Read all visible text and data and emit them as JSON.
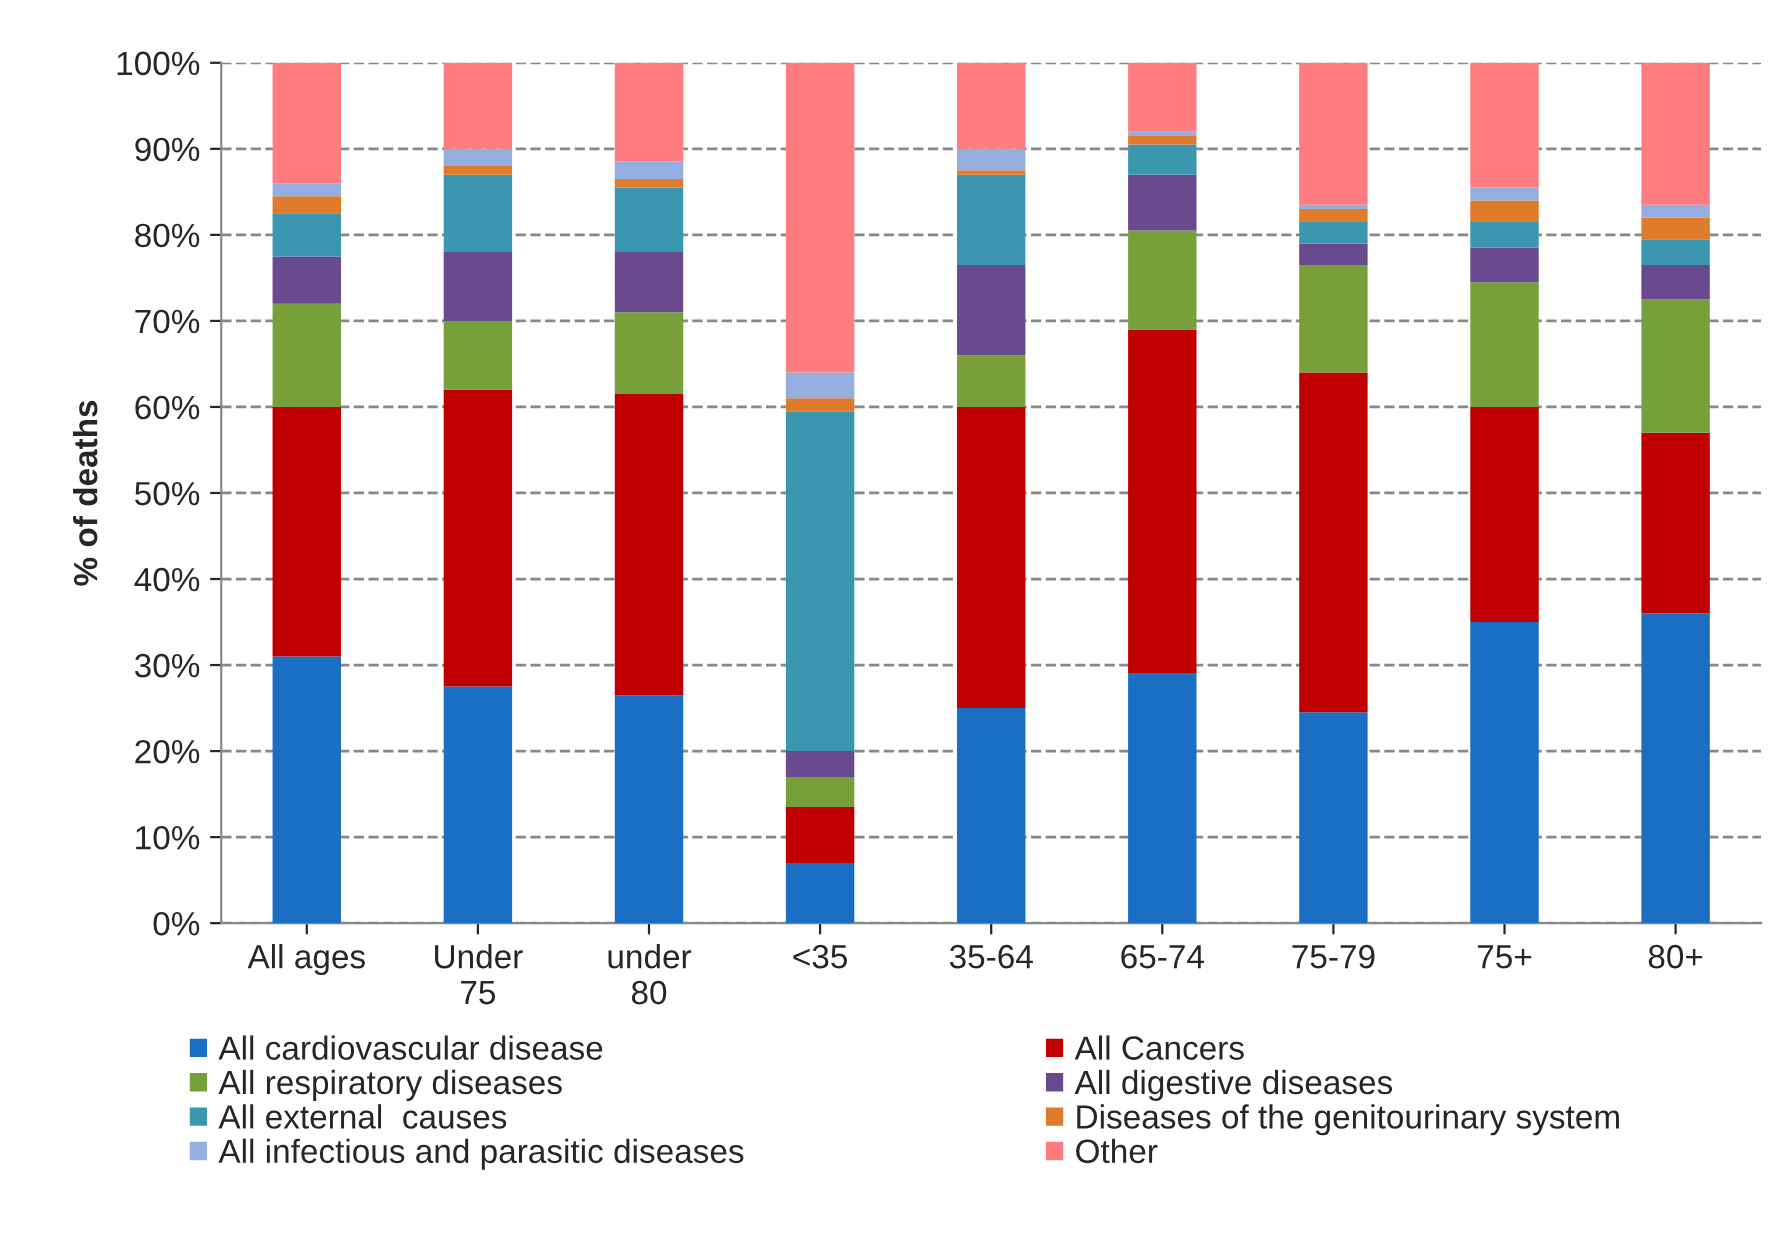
{
  "chart_data": {
    "type": "bar",
    "stacked": true,
    "ylabel": "% of deaths",
    "categories": [
      "All ages",
      "Under\n75",
      "under\n80",
      "<35",
      "35-64",
      "65-74",
      "75-79",
      "75+",
      "80+"
    ],
    "series": [
      {
        "name": "All cardiovascular disease",
        "color": "#1a6fc4",
        "values": [
          31,
          27.5,
          26.5,
          7,
          25,
          29,
          24.5,
          35,
          36
        ]
      },
      {
        "name": "All Cancers",
        "color": "#c00000",
        "values": [
          29,
          34.5,
          35,
          6.5,
          35,
          40,
          39.5,
          25,
          21
        ]
      },
      {
        "name": "All respiratory diseases",
        "color": "#77a03a",
        "values": [
          12,
          8,
          9.5,
          3.5,
          6,
          11.5,
          12.5,
          14.5,
          15.5
        ]
      },
      {
        "name": "All digestive diseases",
        "color": "#6a4a8f",
        "values": [
          5.5,
          8,
          7,
          3,
          10.5,
          6.5,
          2.5,
          4,
          4
        ]
      },
      {
        "name": "All external  causes",
        "color": "#3b97b0",
        "values": [
          5,
          9,
          7.5,
          39.5,
          10.5,
          3.5,
          2.5,
          3,
          3
        ]
      },
      {
        "name": "Diseases of the genitourinary system",
        "color": "#e07b2c",
        "values": [
          2,
          1,
          1,
          1.5,
          0.5,
          1,
          1.5,
          2.5,
          2.5
        ]
      },
      {
        "name": "All infectious and parasitic diseases",
        "color": "#95aee0",
        "values": [
          1.5,
          2,
          2,
          3,
          2.5,
          0.5,
          0.5,
          1.5,
          1.5
        ]
      },
      {
        "name": "Other",
        "color": "#ff7c80",
        "values": [
          14,
          10,
          11.5,
          36,
          10,
          8,
          16.5,
          14.5,
          16.5
        ]
      }
    ],
    "ylim": [
      0,
      100
    ],
    "yticks": [
      {
        "value": 0,
        "label": "0%"
      },
      {
        "value": 10,
        "label": "10%"
      },
      {
        "value": 20,
        "label": "20%"
      },
      {
        "value": 30,
        "label": "30%"
      },
      {
        "value": 40,
        "label": "40%"
      },
      {
        "value": 50,
        "label": "50%"
      },
      {
        "value": 60,
        "label": "60%"
      },
      {
        "value": 70,
        "label": "70%"
      },
      {
        "value": 80,
        "label": "80%"
      },
      {
        "value": 90,
        "label": "90%"
      },
      {
        "value": 100,
        "label": "100%"
      }
    ],
    "grid": "y",
    "legend": "bottom"
  }
}
